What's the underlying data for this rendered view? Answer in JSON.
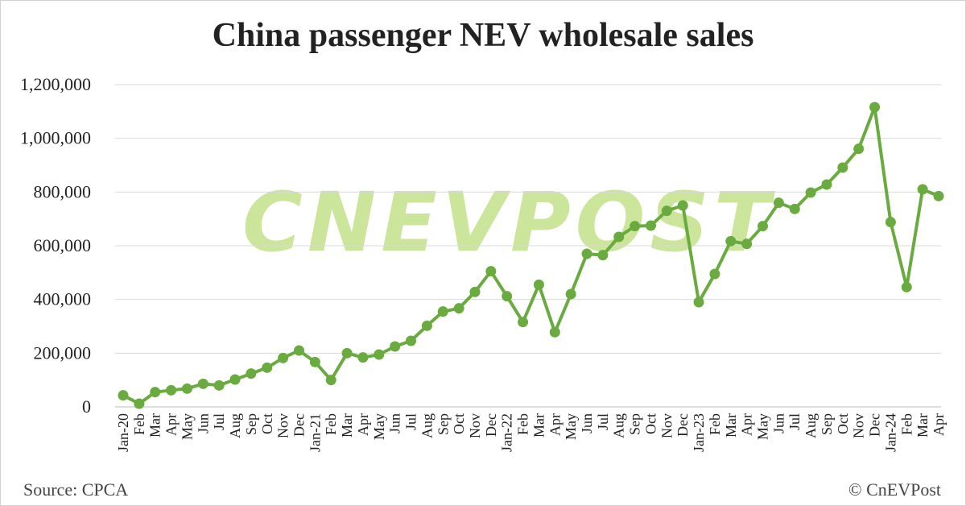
{
  "chart_data": {
    "type": "line",
    "title": "China passenger NEV wholesale sales",
    "xlabel": "",
    "ylabel": "",
    "ylim": [
      0,
      1200000
    ],
    "yticks": [
      "0",
      "200,000",
      "400,000",
      "600,000",
      "800,000",
      "1,000,000",
      "1,200,000"
    ],
    "ytick_values": [
      0,
      200000,
      400000,
      600000,
      800000,
      1000000,
      1200000
    ],
    "grid": true,
    "legend": "none",
    "line_color": "#6aab3f",
    "categories": [
      "Jan-20",
      "Feb",
      "Mar",
      "Apr",
      "May",
      "Jun",
      "Jul",
      "Aug",
      "Sep",
      "Oct",
      "Nov",
      "Dec",
      "Jan-21",
      "Feb",
      "Mar",
      "Apr",
      "May",
      "Jun",
      "Jul",
      "Aug",
      "Sep",
      "Oct",
      "Nov",
      "Dec",
      "Jan-22",
      "Feb",
      "Mar",
      "Apr",
      "May",
      "Jun",
      "Jul",
      "Aug",
      "Sep",
      "Oct",
      "Nov",
      "Dec",
      "Jan-23",
      "Feb",
      "Mar",
      "Apr",
      "May",
      "Jun",
      "Jul",
      "Aug",
      "Sep",
      "Oct",
      "Nov",
      "Dec",
      "Jan-24",
      "Feb",
      "Mar",
      "Apr"
    ],
    "series": [
      {
        "values": [
          43000,
          12000,
          55000,
          62000,
          68000,
          86000,
          80000,
          102000,
          124000,
          146000,
          182000,
          210000,
          167000,
          100000,
          200000,
          184000,
          195000,
          225000,
          246000,
          302000,
          355000,
          367000,
          428000,
          505000,
          412000,
          316000,
          455000,
          278000,
          420000,
          570000,
          565000,
          633000,
          673000,
          675000,
          730000,
          750000,
          390000,
          495000,
          617000,
          607000,
          673000,
          760000,
          737000,
          798000,
          828000,
          891000,
          961000,
          1116000,
          688000,
          446000,
          810000,
          785000
        ]
      }
    ]
  },
  "watermark": "CNEVPOST",
  "footer": {
    "source": "Source: CPCA",
    "credit": "© CnEVPost"
  }
}
